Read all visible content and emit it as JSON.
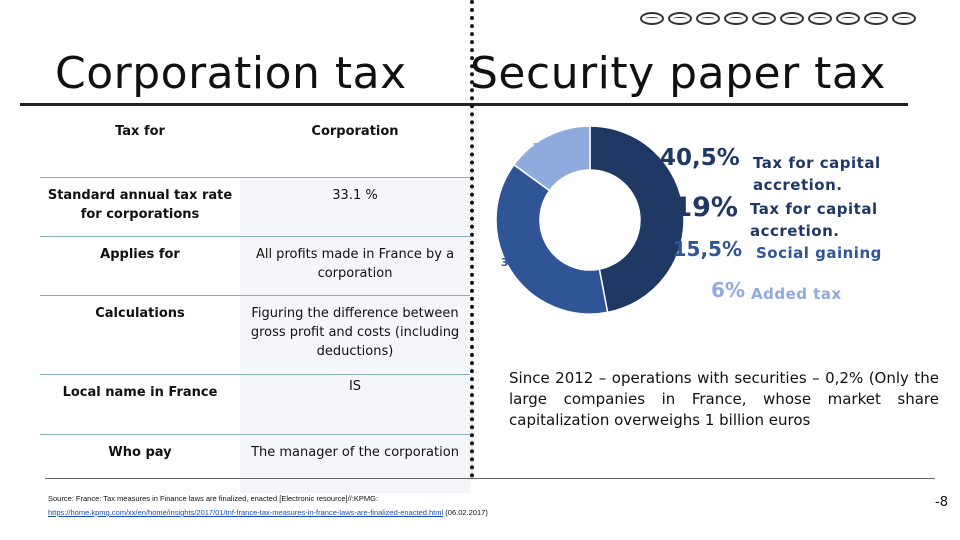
{
  "titles": {
    "left": "Corporation tax",
    "right": "Security paper tax"
  },
  "table": {
    "headers": [
      "Tax for",
      "Corporation"
    ],
    "rows": [
      {
        "label": "Standard annual tax rate for corporations",
        "value": "33.1 %"
      },
      {
        "label": "Applies for",
        "value": "All profits made in France by a corporation"
      },
      {
        "label": "Calculations",
        "value": "Figuring the difference between gross profit and costs (including deductions)"
      },
      {
        "label": "Local name in France",
        "value": "IS"
      },
      {
        "label": "Who pay",
        "value": "The manager of the corporation"
      }
    ]
  },
  "chart_data": {
    "type": "pie",
    "donut": true,
    "categories": [
      "47%",
      "38%",
      "15%"
    ],
    "values": [
      47,
      38,
      15
    ],
    "slice_labels": [
      "47%",
      "38%",
      "15%"
    ],
    "colors": [
      "#1f3864",
      "#2f5597",
      "#8faadc"
    ]
  },
  "legend": [
    {
      "pct": "40,5%",
      "text": "Tax for capital accretion.",
      "color": "#1f3864"
    },
    {
      "pct": "19%",
      "text": "Tax for capital accretion.",
      "color": "#1f3864"
    },
    {
      "pct": "15,5%",
      "text": "Social gaining",
      "color": "#2f5597"
    },
    {
      "pct": "6%",
      "text": "Added tax",
      "color": "#8faadc"
    }
  ],
  "note": "Since 2012 – operations with securities – 0,2% (Only the large companies in France, whose market share capitalization overweighs 1 billion euros",
  "source": {
    "line1": "Source: France: Tax measures in Finance laws are finalized, enacted [Electronic resource]//:KPMG:",
    "link": "https://home.kpmg.com/xx/en/home/insights/2017/01/tnf-france-tax-measures-in-france-laws-are-finalized-enacted.html",
    "date": "(06.02.2017)"
  },
  "page_number": "-8"
}
